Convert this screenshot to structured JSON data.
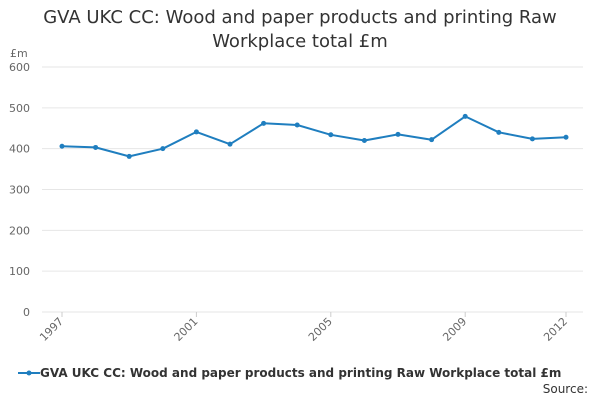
{
  "title": "GVA UKC CC: Wood and paper products and printing Raw Workplace total £m",
  "source_label": "Source:",
  "legend": {
    "label": "GVA UKC CC: Wood and paper products and printing Raw Workplace total £m"
  },
  "colors": {
    "series": "#1f7ebf",
    "grid": "#e6e6e6",
    "axis_text": "#666666",
    "title": "#333333"
  },
  "chart_data": {
    "type": "line",
    "title": "GVA UKC CC: Wood and paper products and printing Raw Workplace total £m",
    "ylabel": "£m",
    "xlabel": "",
    "ylim": [
      0,
      600
    ],
    "yticks": [
      0,
      100,
      200,
      300,
      400,
      500,
      600
    ],
    "xlim": [
      1997,
      2012
    ],
    "xticks": [
      1997,
      2001,
      2005,
      2009,
      2012
    ],
    "grid": true,
    "legend_position": "bottom",
    "series": [
      {
        "name": "GVA UKC CC: Wood and paper products and printing Raw Workplace total £m",
        "x": [
          1997,
          1998,
          1999,
          2000,
          2001,
          2002,
          2003,
          2004,
          2005,
          2006,
          2007,
          2008,
          2009,
          2010,
          2011,
          2012
        ],
        "values": [
          406,
          403,
          381,
          400,
          441,
          411,
          462,
          458,
          434,
          420,
          435,
          422,
          479,
          440,
          424,
          428
        ]
      }
    ]
  }
}
